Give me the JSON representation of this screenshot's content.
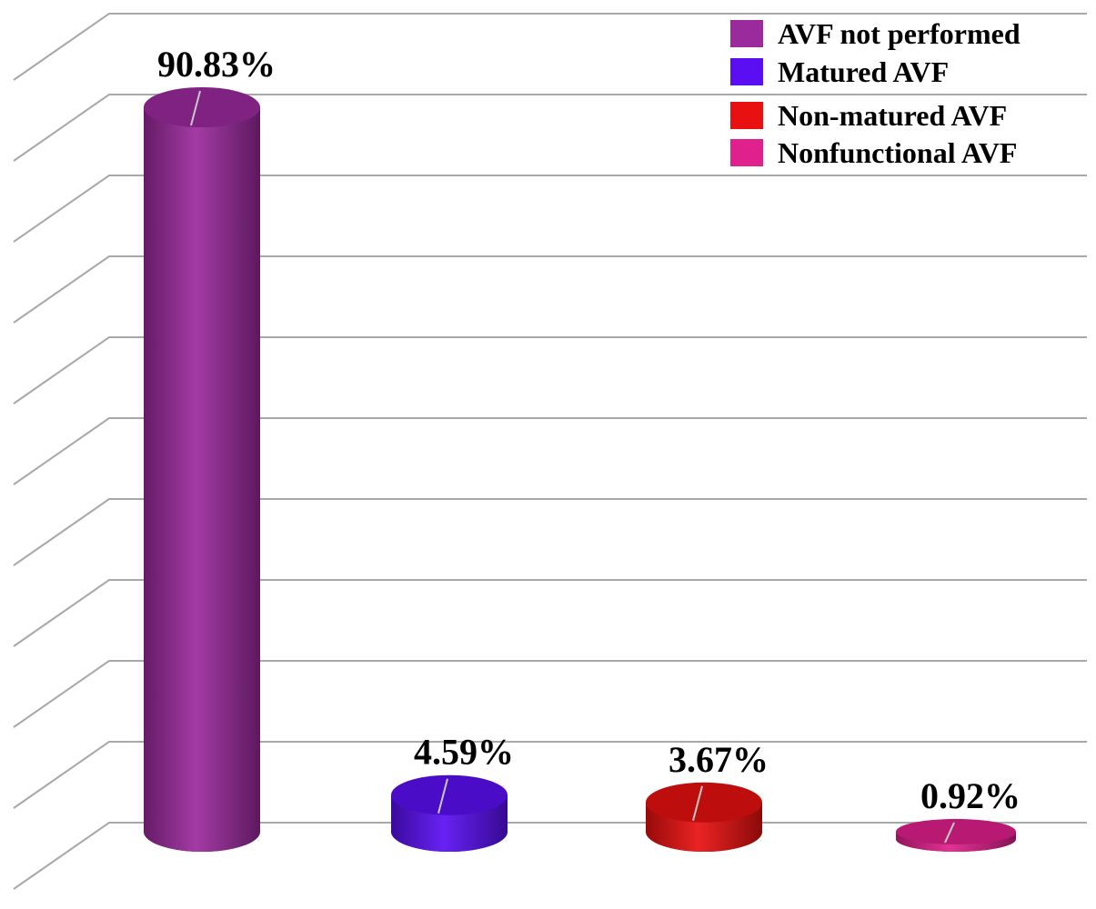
{
  "chart_data": {
    "type": "bar",
    "style": "3d-cylinder",
    "categories": [
      "AVF not performed",
      "Matured AVF",
      "Non-matured AVF",
      "Nonfunctional AVF"
    ],
    "values": [
      90.83,
      4.59,
      3.67,
      0.92
    ],
    "data_labels": [
      "90.83%",
      "4.59%",
      "3.67%",
      "0.92%"
    ],
    "colors": [
      "#9b2a9d",
      "#5a0ff2",
      "#e81010",
      "#e0208c"
    ],
    "ylim": [
      0,
      100
    ],
    "grid": true,
    "legend": {
      "position": "top-right",
      "entries": [
        {
          "label": "AVF not performed",
          "color": "#9b2a9d"
        },
        {
          "label": "Matured AVF",
          "color": "#5a0ff2"
        },
        {
          "label": "Non-matured AVF",
          "color": "#e81010"
        },
        {
          "label": "Nonfunctional AVF",
          "color": "#e0208c"
        }
      ]
    }
  }
}
